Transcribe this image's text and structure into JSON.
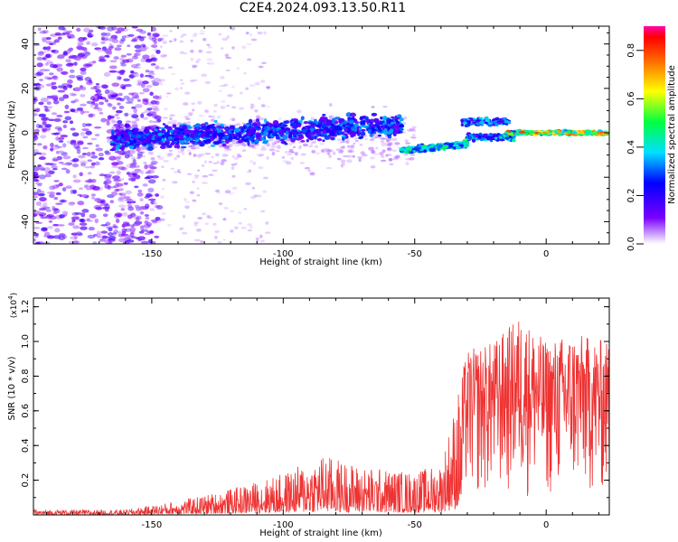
{
  "title": "C2E4.2024.093.13.50.R11",
  "chart_data": [
    {
      "type": "heatmap",
      "xlabel": "Height of straight line (km)",
      "ylabel": "Frequency (Hz)",
      "xlim": [
        -195,
        24
      ],
      "ylim": [
        -50,
        48
      ],
      "xticks": [
        -150,
        -100,
        -50,
        0
      ],
      "yticks": [
        -40,
        -20,
        0,
        20,
        40
      ],
      "colorbar": {
        "label": "Normalized spectral amplitude",
        "range": [
          0.0,
          0.9
        ],
        "ticks": [
          0.0,
          0.2,
          0.4,
          0.6,
          0.8
        ]
      },
      "features": [
        {
          "description": "broad noise band",
          "x_range": [
            -195,
            -150
          ],
          "freq_range": [
            -50,
            48
          ]
        },
        {
          "description": "main signal band",
          "x_range": [
            -165,
            -55
          ],
          "center_freq": -3,
          "spread": 8
        },
        {
          "description": "lower branch",
          "x_range": [
            -55,
            -30
          ],
          "center_freq": -7
        },
        {
          "description": "upper branch",
          "x_range": [
            -32,
            -15
          ],
          "center_freq": 6
        },
        {
          "description": "narrow strong band",
          "x_range": [
            -15,
            24
          ],
          "center_freq": 0
        }
      ]
    },
    {
      "type": "line",
      "xlabel": "Height of straight line (km)",
      "ylabel": "SNR (10 * v/v)",
      "ylabel_multiplier": "(x10",
      "ylabel_multiplier_exp": "4",
      "xlim": [
        -195,
        24
      ],
      "ylim": [
        0,
        1.25
      ],
      "xticks": [
        -150,
        -100,
        -50,
        0
      ],
      "yticks": [
        0.2,
        0.4,
        0.6,
        0.8,
        1.0,
        1.2
      ],
      "color": "#ee3333",
      "envelope": [
        {
          "x": -195,
          "max": 0.03
        },
        {
          "x": -160,
          "max": 0.03
        },
        {
          "x": -140,
          "max": 0.08
        },
        {
          "x": -120,
          "max": 0.15
        },
        {
          "x": -100,
          "max": 0.24
        },
        {
          "x": -85,
          "max": 0.35
        },
        {
          "x": -70,
          "max": 0.28
        },
        {
          "x": -50,
          "max": 0.25
        },
        {
          "x": -40,
          "max": 0.3
        },
        {
          "x": -30,
          "max": 0.95
        },
        {
          "x": -20,
          "max": 1.0
        },
        {
          "x": -10,
          "max": 1.15
        },
        {
          "x": 0,
          "max": 1.0
        },
        {
          "x": 10,
          "max": 1.05
        },
        {
          "x": 24,
          "max": 1.0
        }
      ]
    }
  ]
}
